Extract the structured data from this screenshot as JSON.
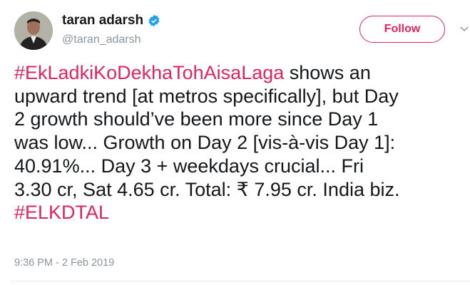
{
  "author": {
    "name": "taran adarsh",
    "handle": "@taran_adarsh",
    "verified": true,
    "verified_color": "#1da1f2"
  },
  "follow_label": "Follow",
  "accent": "#e0245e",
  "tweet": {
    "lines": [
      [
        {
          "t": "#EkLadkiKoDekhaTohAisaLaga",
          "tag": true
        },
        {
          "t": " shows an"
        }
      ],
      [
        {
          "t": "upward trend [at metros specifically], but Day"
        }
      ],
      [
        {
          "t": "2 growth should’ve been more since Day 1"
        }
      ],
      [
        {
          "t": "was low... Growth on Day 2 [vis-à-vis Day 1]:"
        }
      ],
      [
        {
          "t": "40.91%... Day 3 + weekdays crucial... Fri"
        }
      ],
      [
        {
          "t": "3.30 cr, Sat 4.65 cr. Total: ₹ 7.95 cr. India biz."
        }
      ],
      [
        {
          "t": "#ELKDTAL",
          "tag": true
        }
      ]
    ]
  },
  "timestamp": "9:36 PM - 2 Feb 2019"
}
